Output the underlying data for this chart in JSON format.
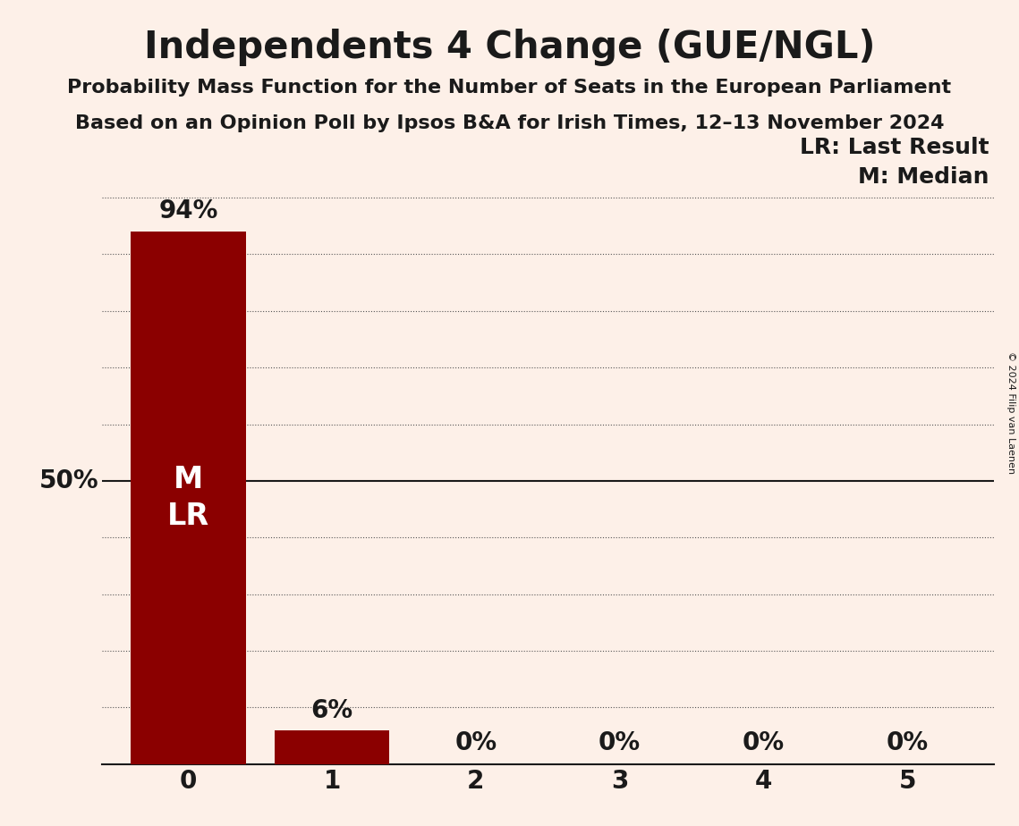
{
  "title": "Independents 4 Change (GUE/NGL)",
  "subtitle1": "Probability Mass Function for the Number of Seats in the European Parliament",
  "subtitle2": "Based on an Opinion Poll by Ipsos B&A for Irish Times, 12–13 November 2024",
  "copyright": "© 2024 Filip van Laenen",
  "categories": [
    0,
    1,
    2,
    3,
    4,
    5
  ],
  "values": [
    0.94,
    0.06,
    0.0,
    0.0,
    0.0,
    0.0
  ],
  "bar_color": "#8b0000",
  "background_color": "#fdf0e8",
  "text_color": "#1a1a1a",
  "bar_label_color_inside": "#ffffff",
  "bar_label_color_outside": "#1a1a1a",
  "median": 0,
  "last_result": 0,
  "ylim": [
    0,
    1.05
  ],
  "ylabel_50": "50%",
  "legend_lr": "LR: Last Result",
  "legend_m": "M: Median",
  "title_fontsize": 30,
  "subtitle_fontsize": 16,
  "axis_label_fontsize": 20,
  "bar_label_fontsize": 20,
  "tick_fontsize": 20,
  "annotation_fontsize": 18,
  "ml_label_fontsize": 24
}
